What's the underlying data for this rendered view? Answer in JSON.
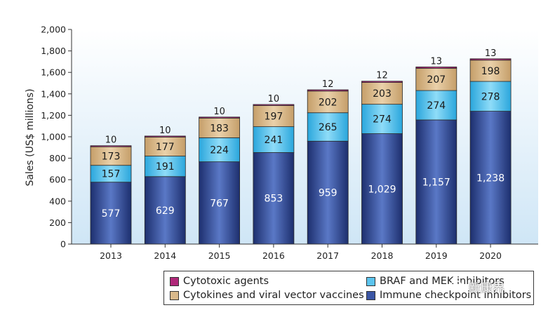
{
  "chart_data": {
    "type": "bar",
    "stacked": true,
    "categories": [
      "2013",
      "2014",
      "2015",
      "2016",
      "2017",
      "2018",
      "2019",
      "2020"
    ],
    "series": [
      {
        "name": "Immune checkpoint inhibitors",
        "values": [
          577,
          629,
          767,
          853,
          959,
          1029,
          1157,
          1238
        ],
        "labels": [
          "577",
          "629",
          "767",
          "853",
          "959",
          "1,029",
          "1,157",
          "1,238"
        ],
        "color": "#3a55a4"
      },
      {
        "name": "BRAF and MEK inhibitors",
        "values": [
          157,
          191,
          224,
          241,
          265,
          274,
          274,
          278
        ],
        "labels": [
          "157",
          "191",
          "224",
          "241",
          "265",
          "274",
          "274",
          "278"
        ],
        "color": "#5cc4ee"
      },
      {
        "name": "Cytokines and viral vector vaccines",
        "values": [
          173,
          177,
          183,
          197,
          202,
          203,
          207,
          198
        ],
        "labels": [
          "173",
          "177",
          "183",
          "197",
          "202",
          "203",
          "207",
          "198"
        ],
        "color": "#d9b98c"
      },
      {
        "name": "Cytotoxic agents",
        "values": [
          10,
          10,
          10,
          10,
          12,
          12,
          13,
          13
        ],
        "labels": [
          "10",
          "10",
          "10",
          "10",
          "12",
          "12",
          "13",
          "13"
        ],
        "color": "#b0287a"
      }
    ],
    "ylabel": "Sales (US$ millions)",
    "ylim": [
      0,
      2000
    ],
    "yticks": [
      "0",
      "200",
      "400",
      "600",
      "800",
      "1,000",
      "1,200",
      "1,400",
      "1,600",
      "1,800",
      "2,000"
    ],
    "legend_position": "bottom-right",
    "legend": [
      {
        "name": "Cytotoxic agents",
        "color": "#b0287a"
      },
      {
        "name": "BRAF and MEK inhibitors",
        "color": "#5cc4ee"
      },
      {
        "name": "Cytokines and viral vector vaccines",
        "color": "#d9b98c"
      },
      {
        "name": "Immune checkpoint inhibitors",
        "color": "#3a55a4"
      }
    ]
  },
  "watermark": {
    "text": "新康界",
    "icon": "wechat-icon"
  }
}
